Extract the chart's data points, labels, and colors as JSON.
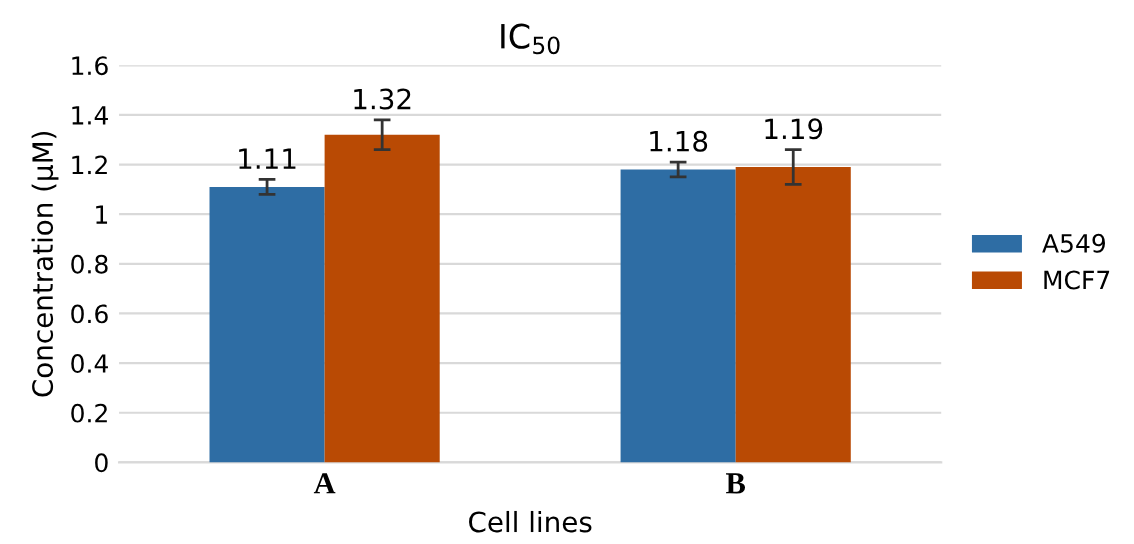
{
  "chart_data": {
    "type": "bar",
    "title": "IC$_{50}$",
    "xlabel": "Cell lines",
    "ylabel": "Concentration (µM)",
    "categories": [
      "A",
      "B"
    ],
    "series": [
      {
        "name": "A549",
        "color": "#2e6da4",
        "values": [
          1.11,
          1.18
        ],
        "errors": [
          0.03,
          0.03
        ]
      },
      {
        "name": "MCF7",
        "color": "#b94a04",
        "values": [
          1.32,
          1.19
        ],
        "errors": [
          0.06,
          0.07
        ]
      }
    ],
    "data_labels": true,
    "ylim": [
      0,
      1.6
    ],
    "yticks": [
      0,
      0.2,
      0.4,
      0.6,
      0.8,
      1,
      1.2,
      1.4,
      1.6
    ],
    "grid": "y",
    "legend": "right"
  }
}
